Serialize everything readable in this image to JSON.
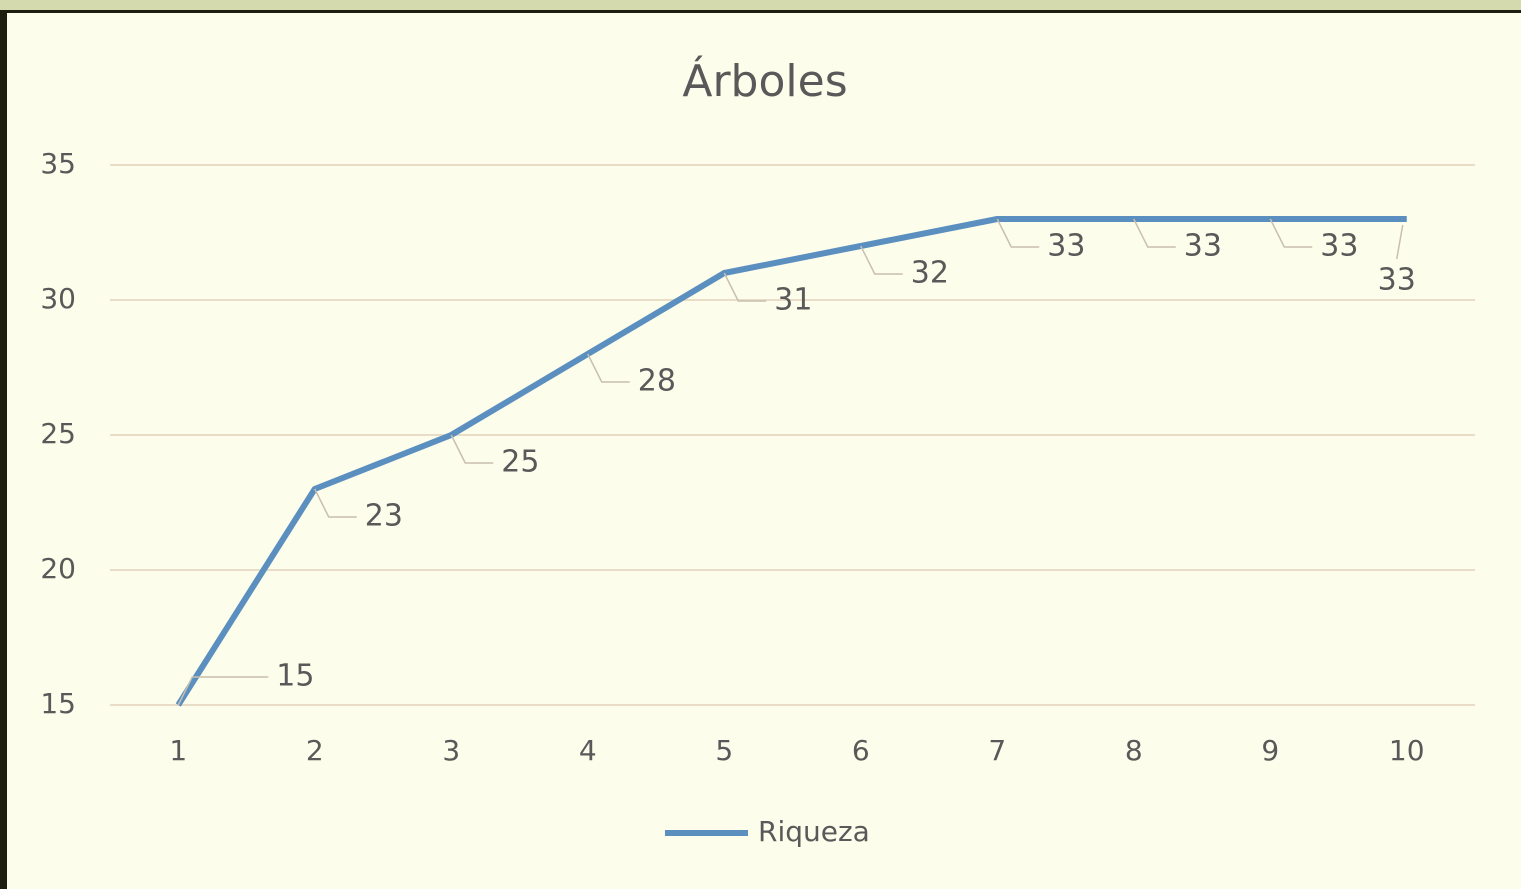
{
  "chart_data": {
    "type": "line",
    "title": "Árboles",
    "categories": [
      "1",
      "2",
      "3",
      "4",
      "5",
      "6",
      "7",
      "8",
      "9",
      "10"
    ],
    "series": [
      {
        "name": "Riqueza",
        "color": "#5a8fc0",
        "values": [
          15,
          23,
          25,
          28,
          31,
          32,
          33,
          33,
          33,
          33
        ]
      }
    ],
    "ylim": [
      15,
      35
    ],
    "yticks": [
      15,
      20,
      25,
      30,
      35
    ],
    "grid": true,
    "legend": "bottom"
  }
}
